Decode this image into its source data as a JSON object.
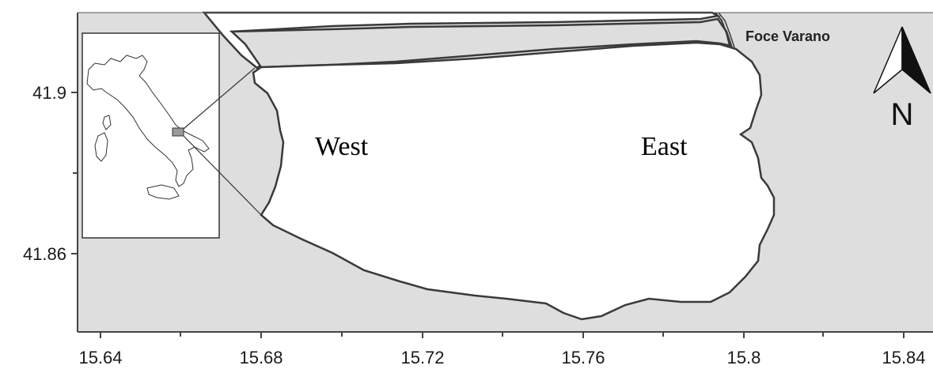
{
  "map": {
    "axes": {
      "x_ticks": [
        "15.64",
        "15.68",
        "15.72",
        "15.76",
        "15.8",
        "15.84"
      ],
      "y_ticks": [
        "41.9",
        "41.86"
      ]
    },
    "labels": {
      "west": "West",
      "east": "East",
      "outlet": "Foce Varano",
      "north": "N"
    },
    "colors": {
      "land": "#dedede",
      "water": "#ffffff",
      "outline": "#3a3a3a"
    },
    "inset": {
      "description_icon": "italy-locator-icon"
    }
  }
}
